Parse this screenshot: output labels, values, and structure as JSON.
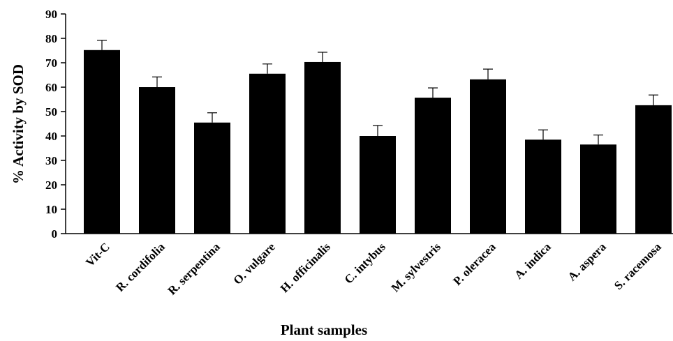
{
  "chart_data": {
    "type": "bar",
    "title": "",
    "xlabel": "Plant samples",
    "ylabel": "% Activity by SOD",
    "ylim": [
      0,
      90
    ],
    "yticks": [
      "0",
      "10",
      "20",
      "30",
      "40",
      "50",
      "60",
      "70",
      "80",
      "90"
    ],
    "categories": [
      "Vit-C",
      "R. cordifolia",
      "R. serpentina",
      "O. vulgare",
      "H. officinalis",
      "C. intybus",
      "M. sylvestris",
      "P. oleracea",
      "A. indica",
      "A. aspera",
      "S. racemosa"
    ],
    "values": [
      75.2,
      60.0,
      45.5,
      65.5,
      70.3,
      40.0,
      55.7,
      63.2,
      38.5,
      36.5,
      52.6
    ],
    "errors": [
      4.0,
      4.2,
      4.0,
      4.0,
      4.0,
      4.3,
      4.0,
      4.2,
      4.0,
      3.9,
      4.2
    ],
    "bar_color": "#000000",
    "grid": false,
    "legend": "none"
  }
}
